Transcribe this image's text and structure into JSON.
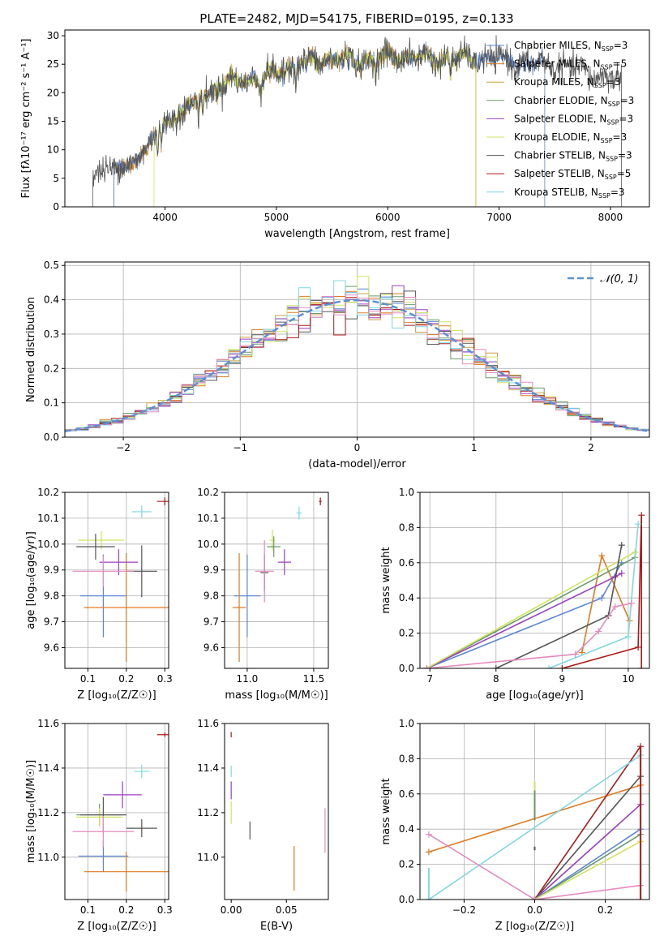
{
  "title": "PLATE=2482, MJD=54175, FIBERID=0195, z=0.133",
  "colors": {
    "Chabrier MILES": "#5b86d6",
    "Salpeter MILES": "#e07b20",
    "Kroupa MILES": "#c8a040",
    "Chabrier ELODIE": "#6a9a6a",
    "Salpeter ELODIE": "#9b3fbf",
    "Kroupa ELODIE": "#cfe35f",
    "Chabrier STELIB": "#555555",
    "Salpeter STELIB": "#b01818",
    "Kroupa STELIB": "#7fd9df",
    "pink": "#e58bbf",
    "gaussian": "#5b8fd6"
  },
  "chart_data": [
    {
      "type": "line",
      "id": "spectrum",
      "title": "PLATE=2482, MJD=54175, FIBERID=0195, z=0.133",
      "xlabel": "wavelength [Angstrom, rest frame]",
      "ylabel": "Flux [fλ10⁻¹⁷ erg cm⁻² s⁻¹ A⁻¹]",
      "xlim": [
        3100,
        8350
      ],
      "ylim": [
        0,
        31
      ],
      "xticks": [
        4000,
        5000,
        6000,
        7000,
        8000
      ],
      "yticks": [
        0,
        5,
        10,
        15,
        20,
        25,
        30
      ],
      "grid": false,
      "legend_placement": "top-right",
      "legend": [
        "Chabrier MILES, NSSP=3",
        "Salpeter MILES, NSSP=5",
        "Kroupa MILES, NSSP=3",
        "Chabrier ELODIE, NSSP=3",
        "Salpeter ELODIE, NSSP=3",
        "Kroupa ELODIE, NSSP=3",
        "Chabrier STELIB, NSSP=3",
        "Salpeter STELIB, NSSP=5",
        "Kroupa STELIB, NSSP=3"
      ],
      "continuum": [
        [
          3350,
          5.5
        ],
        [
          3450,
          6.5
        ],
        [
          3600,
          7
        ],
        [
          3750,
          8
        ],
        [
          3850,
          11
        ],
        [
          3950,
          14
        ],
        [
          4100,
          16
        ],
        [
          4300,
          19
        ],
        [
          4500,
          21
        ],
        [
          4700,
          22.5
        ],
        [
          4900,
          22.5
        ],
        [
          5100,
          24.5
        ],
        [
          5300,
          25.5
        ],
        [
          5500,
          26
        ],
        [
          5700,
          25.5
        ],
        [
          5900,
          26
        ],
        [
          6100,
          26.5
        ],
        [
          6300,
          26
        ],
        [
          6500,
          26
        ],
        [
          6700,
          26
        ],
        [
          6900,
          26
        ],
        [
          7100,
          25.5
        ],
        [
          7300,
          25
        ],
        [
          7500,
          25
        ],
        [
          7700,
          24
        ],
        [
          7900,
          23
        ],
        [
          8100,
          22
        ]
      ],
      "model_ranges": [
        {
          "series": "Salpeter MILES",
          "x": [
            3540,
            6790
          ]
        },
        {
          "series": "Kroupa MILES",
          "x": [
            3540,
            6790
          ]
        },
        {
          "series": "Chabrier MILES",
          "x": [
            3540,
            7410
          ]
        },
        {
          "series": "Kroupa ELODIE",
          "x": [
            3900,
            6790
          ]
        },
        {
          "series": "Chabrier STELIB",
          "x": [
            3350,
            8100
          ]
        }
      ]
    },
    {
      "type": "histogram",
      "id": "residuals",
      "xlabel": "(data-model)/error",
      "ylabel": "Normed distribution",
      "xlim": [
        -2.5,
        2.5
      ],
      "ylim": [
        0,
        0.51
      ],
      "xticks": [
        -2,
        -1,
        0,
        1,
        2
      ],
      "yticks": [
        0.0,
        0.1,
        0.2,
        0.3,
        0.4,
        0.5
      ],
      "grid": true,
      "bin_width": 0.1,
      "legend": [
        "𝒩(0, 1)"
      ],
      "legend_placement": "top-right"
    },
    {
      "type": "scatter",
      "id": "age-vs-Z",
      "xlabel": "Z [log₁₀(Z/Z☉)]",
      "ylabel": "age  [log₁₀(age/yr)]",
      "xlim": [
        0.04,
        0.31
      ],
      "ylim": [
        9.52,
        10.2
      ],
      "xticks": [
        0.1,
        0.2,
        0.3
      ],
      "yticks": [
        9.6,
        9.7,
        9.8,
        9.9,
        10.0,
        10.1,
        10.2
      ],
      "grid": true,
      "points": [
        {
          "series": "Chabrier MILES",
          "x": 0.14,
          "y": 9.8,
          "xerr": 0.06,
          "yerr": 0.16
        },
        {
          "series": "Salpeter MILES",
          "x": 0.2,
          "y": 9.755,
          "xerr": 0.11,
          "yerr": 0.21
        },
        {
          "series": "Kroupa ELODIE",
          "x": 0.135,
          "y": 10.015,
          "xerr": 0.06,
          "yerr": 0.035
        },
        {
          "series": "Chabrier STELIB",
          "x": 0.12,
          "y": 9.99,
          "xerr": 0.05,
          "yerr": 0.05
        },
        {
          "series": "Salpeter ELODIE",
          "x": 0.18,
          "y": 9.93,
          "xerr": 0.05,
          "yerr": 0.05
        },
        {
          "series": "Chabrier STELIB",
          "x": 0.24,
          "y": 9.895,
          "xerr": 0.04,
          "yerr": 0.1
        },
        {
          "series": "pink",
          "x": 0.14,
          "y": 9.895,
          "xerr": 0.08,
          "yerr": 0.06
        },
        {
          "series": "Kroupa STELIB",
          "x": 0.24,
          "y": 10.125,
          "xerr": 0.025,
          "yerr": 0.025
        },
        {
          "series": "Salpeter STELIB",
          "x": 0.3,
          "y": 10.165,
          "xerr": 0.02,
          "yerr": 0.015
        }
      ]
    },
    {
      "type": "scatter",
      "id": "age-vs-mass",
      "xlabel": "mass [log₁₀(M/M☉)]",
      "ylabel": "",
      "xlim": [
        10.83,
        11.61
      ],
      "ylim": [
        9.52,
        10.2
      ],
      "xticks": [
        11.0,
        11.5
      ],
      "yticks": [
        9.6,
        9.7,
        9.8,
        9.9,
        10.0,
        10.1,
        10.2
      ],
      "grid": true,
      "points": [
        {
          "series": "Chabrier MILES",
          "x": 11.0,
          "y": 9.8,
          "xerr": 0.1,
          "yerr": 0.16
        },
        {
          "series": "Salpeter MILES",
          "x": 10.94,
          "y": 9.755,
          "xerr": 0.05,
          "yerr": 0.21
        },
        {
          "series": "Chabrier STELIB",
          "x": 11.13,
          "y": 9.89,
          "xerr": 0.03,
          "yerr": 0.07
        },
        {
          "series": "pink",
          "x": 11.13,
          "y": 9.895,
          "xerr": 0.07,
          "yerr": 0.12
        },
        {
          "series": "Salpeter ELODIE",
          "x": 11.28,
          "y": 9.93,
          "xerr": 0.05,
          "yerr": 0.05
        },
        {
          "series": "Kroupa ELODIE",
          "x": 11.19,
          "y": 10.015,
          "xerr": 0.02,
          "yerr": 0.04
        },
        {
          "series": "Chabrier ELODIE",
          "x": 11.2,
          "y": 9.99,
          "xerr": 0.05,
          "yerr": 0.04
        },
        {
          "series": "Kroupa STELIB",
          "x": 11.39,
          "y": 10.12,
          "xerr": 0.02,
          "yerr": 0.025
        },
        {
          "series": "Salpeter STELIB",
          "x": 11.55,
          "y": 10.165,
          "xerr": 0.01,
          "yerr": 0.015
        }
      ]
    },
    {
      "type": "line",
      "id": "weight-vs-age",
      "xlabel": "age  [log₁₀(age/yr)]",
      "ylabel": "mass weight",
      "xlim": [
        6.85,
        10.32
      ],
      "ylim": [
        0,
        1.0
      ],
      "xticks": [
        7,
        8,
        9,
        10
      ],
      "yticks": [
        0.0,
        0.2,
        0.4,
        0.6,
        0.8,
        1.0
      ],
      "grid": true,
      "series": [
        {
          "name": "Chabrier MILES",
          "points": [
            [
              6.95,
              0.0
            ],
            [
              9.6,
              0.4
            ],
            [
              9.9,
              0.6
            ]
          ]
        },
        {
          "name": "Salpeter MILES",
          "points": [
            [
              9.3,
              0.09
            ],
            [
              9.6,
              0.64
            ],
            [
              10.02,
              0.27
            ]
          ]
        },
        {
          "name": "Chabrier ELODIE",
          "points": [
            [
              6.95,
              0.0
            ],
            [
              10.1,
              0.63
            ]
          ]
        },
        {
          "name": "Salpeter ELODIE",
          "points": [
            [
              6.95,
              0.0
            ],
            [
              9.8,
              0.52
            ],
            [
              9.9,
              0.54
            ]
          ]
        },
        {
          "name": "Kroupa ELODIE",
          "points": [
            [
              6.95,
              0.0
            ],
            [
              10.1,
              0.66
            ]
          ]
        },
        {
          "name": "Chabrier STELIB",
          "points": [
            [
              8.0,
              0.0
            ],
            [
              9.7,
              0.3
            ],
            [
              9.9,
              0.7
            ]
          ]
        },
        {
          "name": "Salpeter STELIB",
          "points": [
            [
              9.0,
              0.0
            ],
            [
              10.15,
              0.12
            ],
            [
              10.2,
              0.87
            ],
            [
              10.2,
              0.0
            ]
          ]
        },
        {
          "name": "Kroupa STELIB",
          "points": [
            [
              8.8,
              0.0
            ],
            [
              10.0,
              0.18
            ],
            [
              10.15,
              0.82
            ]
          ]
        },
        {
          "name": "pink",
          "points": [
            [
              6.95,
              0.0
            ],
            [
              9.2,
              0.08
            ],
            [
              9.55,
              0.21
            ],
            [
              9.8,
              0.35
            ],
            [
              10.05,
              0.37
            ]
          ]
        }
      ]
    },
    {
      "type": "scatter",
      "id": "mass-vs-Z",
      "xlabel": "Z [log₁₀(Z/Z☉)]",
      "ylabel": "mass [log₁₀(M/M☉)]",
      "xlim": [
        0.04,
        0.31
      ],
      "ylim": [
        10.81,
        11.6
      ],
      "xticks": [
        0.1,
        0.2,
        0.3
      ],
      "yticks": [
        11.0,
        11.2,
        11.4,
        11.6
      ],
      "grid": true,
      "points": [
        {
          "series": "Chabrier MILES",
          "x": 0.14,
          "y": 11.005,
          "xerr": 0.065,
          "yerr": 0.07
        },
        {
          "series": "Salpeter MILES",
          "x": 0.2,
          "y": 10.935,
          "xerr": 0.11,
          "yerr": 0.09
        },
        {
          "series": "Chabrier ELODIE",
          "x": 0.13,
          "y": 11.19,
          "xerr": 0.06,
          "yerr": 0.05
        },
        {
          "series": "Kroupa ELODIE",
          "x": 0.13,
          "y": 11.18,
          "xerr": 0.06,
          "yerr": 0.04
        },
        {
          "series": "Chabrier STELIB",
          "x": 0.14,
          "y": 11.19,
          "xerr": 0.06,
          "yerr": 0.08
        },
        {
          "series": "Salpeter ELODIE",
          "x": 0.19,
          "y": 11.28,
          "xerr": 0.05,
          "yerr": 0.06
        },
        {
          "series": "pink",
          "x": 0.14,
          "y": 11.115,
          "xerr": 0.08,
          "yerr": 0.07
        },
        {
          "series": "Chabrier STELIB",
          "x": 0.24,
          "y": 11.13,
          "xerr": 0.04,
          "yerr": 0.04
        },
        {
          "series": "Kroupa STELIB",
          "x": 0.24,
          "y": 11.385,
          "xerr": 0.02,
          "yerr": 0.03
        },
        {
          "series": "Salpeter STELIB",
          "x": 0.3,
          "y": 11.55,
          "xerr": 0.02,
          "yerr": 0.01
        }
      ]
    },
    {
      "type": "scatter",
      "id": "mass-vs-EBV",
      "xlabel": "E(B-V)",
      "ylabel": "",
      "xlim": [
        -0.006,
        0.088
      ],
      "ylim": [
        10.81,
        11.6
      ],
      "xticks": [
        0.0,
        0.05
      ],
      "yticks": [
        11.0,
        11.2,
        11.4,
        11.6
      ],
      "grid": false,
      "points": [
        {
          "series": "Kroupa STELIB",
          "x": 0.0,
          "y": 11.385,
          "yerr": 0.025
        },
        {
          "series": "Salpeter STELIB",
          "x": 0.0,
          "y": 11.55,
          "yerr": 0.012
        },
        {
          "series": "Salpeter ELODIE",
          "x": 0.0,
          "y": 11.3,
          "yerr": 0.04
        },
        {
          "series": "Kroupa ELODIE",
          "x": 0.0,
          "y": 11.2,
          "yerr": 0.05
        },
        {
          "series": "Chabrier STELIB",
          "x": 0.017,
          "y": 11.12,
          "yerr": 0.04
        },
        {
          "series": "Salpeter MILES",
          "x": 0.057,
          "y": 10.95,
          "yerr": 0.1
        },
        {
          "series": "pink",
          "x": 0.085,
          "y": 11.12,
          "yerr": 0.1
        }
      ]
    },
    {
      "type": "line",
      "id": "weight-vs-Z",
      "xlabel": "Z [log₁₀(Z/Z☉)]",
      "ylabel": "mass weight",
      "xlim": [
        -0.325,
        0.325
      ],
      "ylim": [
        0,
        1.0
      ],
      "xticks": [
        -0.2,
        0.0,
        0.2
      ],
      "yticks": [
        0.0,
        0.2,
        0.4,
        0.6,
        0.8,
        1.0
      ],
      "grid": true,
      "series": [
        {
          "name": "Salpeter MILES",
          "points": [
            [
              -0.3,
              0.27
            ],
            [
              0.3,
              0.65
            ]
          ]
        },
        {
          "name": "Salpeter STELIB",
          "points": [
            [
              0.0,
              0.0
            ],
            [
              0.3,
              0.87
            ]
          ]
        },
        {
          "name": "Kroupa STELIB",
          "points": [
            [
              -0.3,
              0.0
            ],
            [
              0.3,
              0.82
            ]
          ]
        },
        {
          "name": "Chabrier STELIB",
          "points": [
            [
              0.0,
              0.0
            ],
            [
              0.3,
              0.7
            ]
          ]
        },
        {
          "name": "Salpeter ELODIE",
          "points": [
            [
              0.0,
              0.0
            ],
            [
              0.3,
              0.54
            ]
          ]
        },
        {
          "name": "Chabrier MILES",
          "points": [
            [
              0.0,
              0.0
            ],
            [
              0.3,
              0.4
            ]
          ]
        },
        {
          "name": "Chabrier ELODIE",
          "points": [
            [
              0.0,
              0.0
            ],
            [
              0.3,
              0.37
            ]
          ]
        },
        {
          "name": "Kroupa ELODIE",
          "points": [
            [
              0.0,
              0.0
            ],
            [
              0.3,
              0.33
            ]
          ]
        },
        {
          "name": "pink",
          "points": [
            [
              -0.3,
              0.37
            ],
            [
              0.0,
              0.0
            ],
            [
              0.3,
              0.08
            ]
          ]
        }
      ],
      "vertical_errors": [
        {
          "series": "Kroupa ELODIE",
          "x": 0.0,
          "y": [
            0.45,
            0.67
          ]
        },
        {
          "series": "Chabrier STELIB",
          "x": 0.0,
          "y": [
            0.28,
            0.3
          ]
        },
        {
          "series": "Chabrier ELODIE",
          "x": 0.0,
          "y": [
            0.45,
            0.62
          ]
        },
        {
          "series": "Salpeter STELIB",
          "x": 0.3,
          "y": [
            0.0,
            0.87
          ]
        },
        {
          "series": "Kroupa STELIB",
          "x": -0.3,
          "y": [
            0.0,
            0.18
          ]
        }
      ]
    }
  ]
}
